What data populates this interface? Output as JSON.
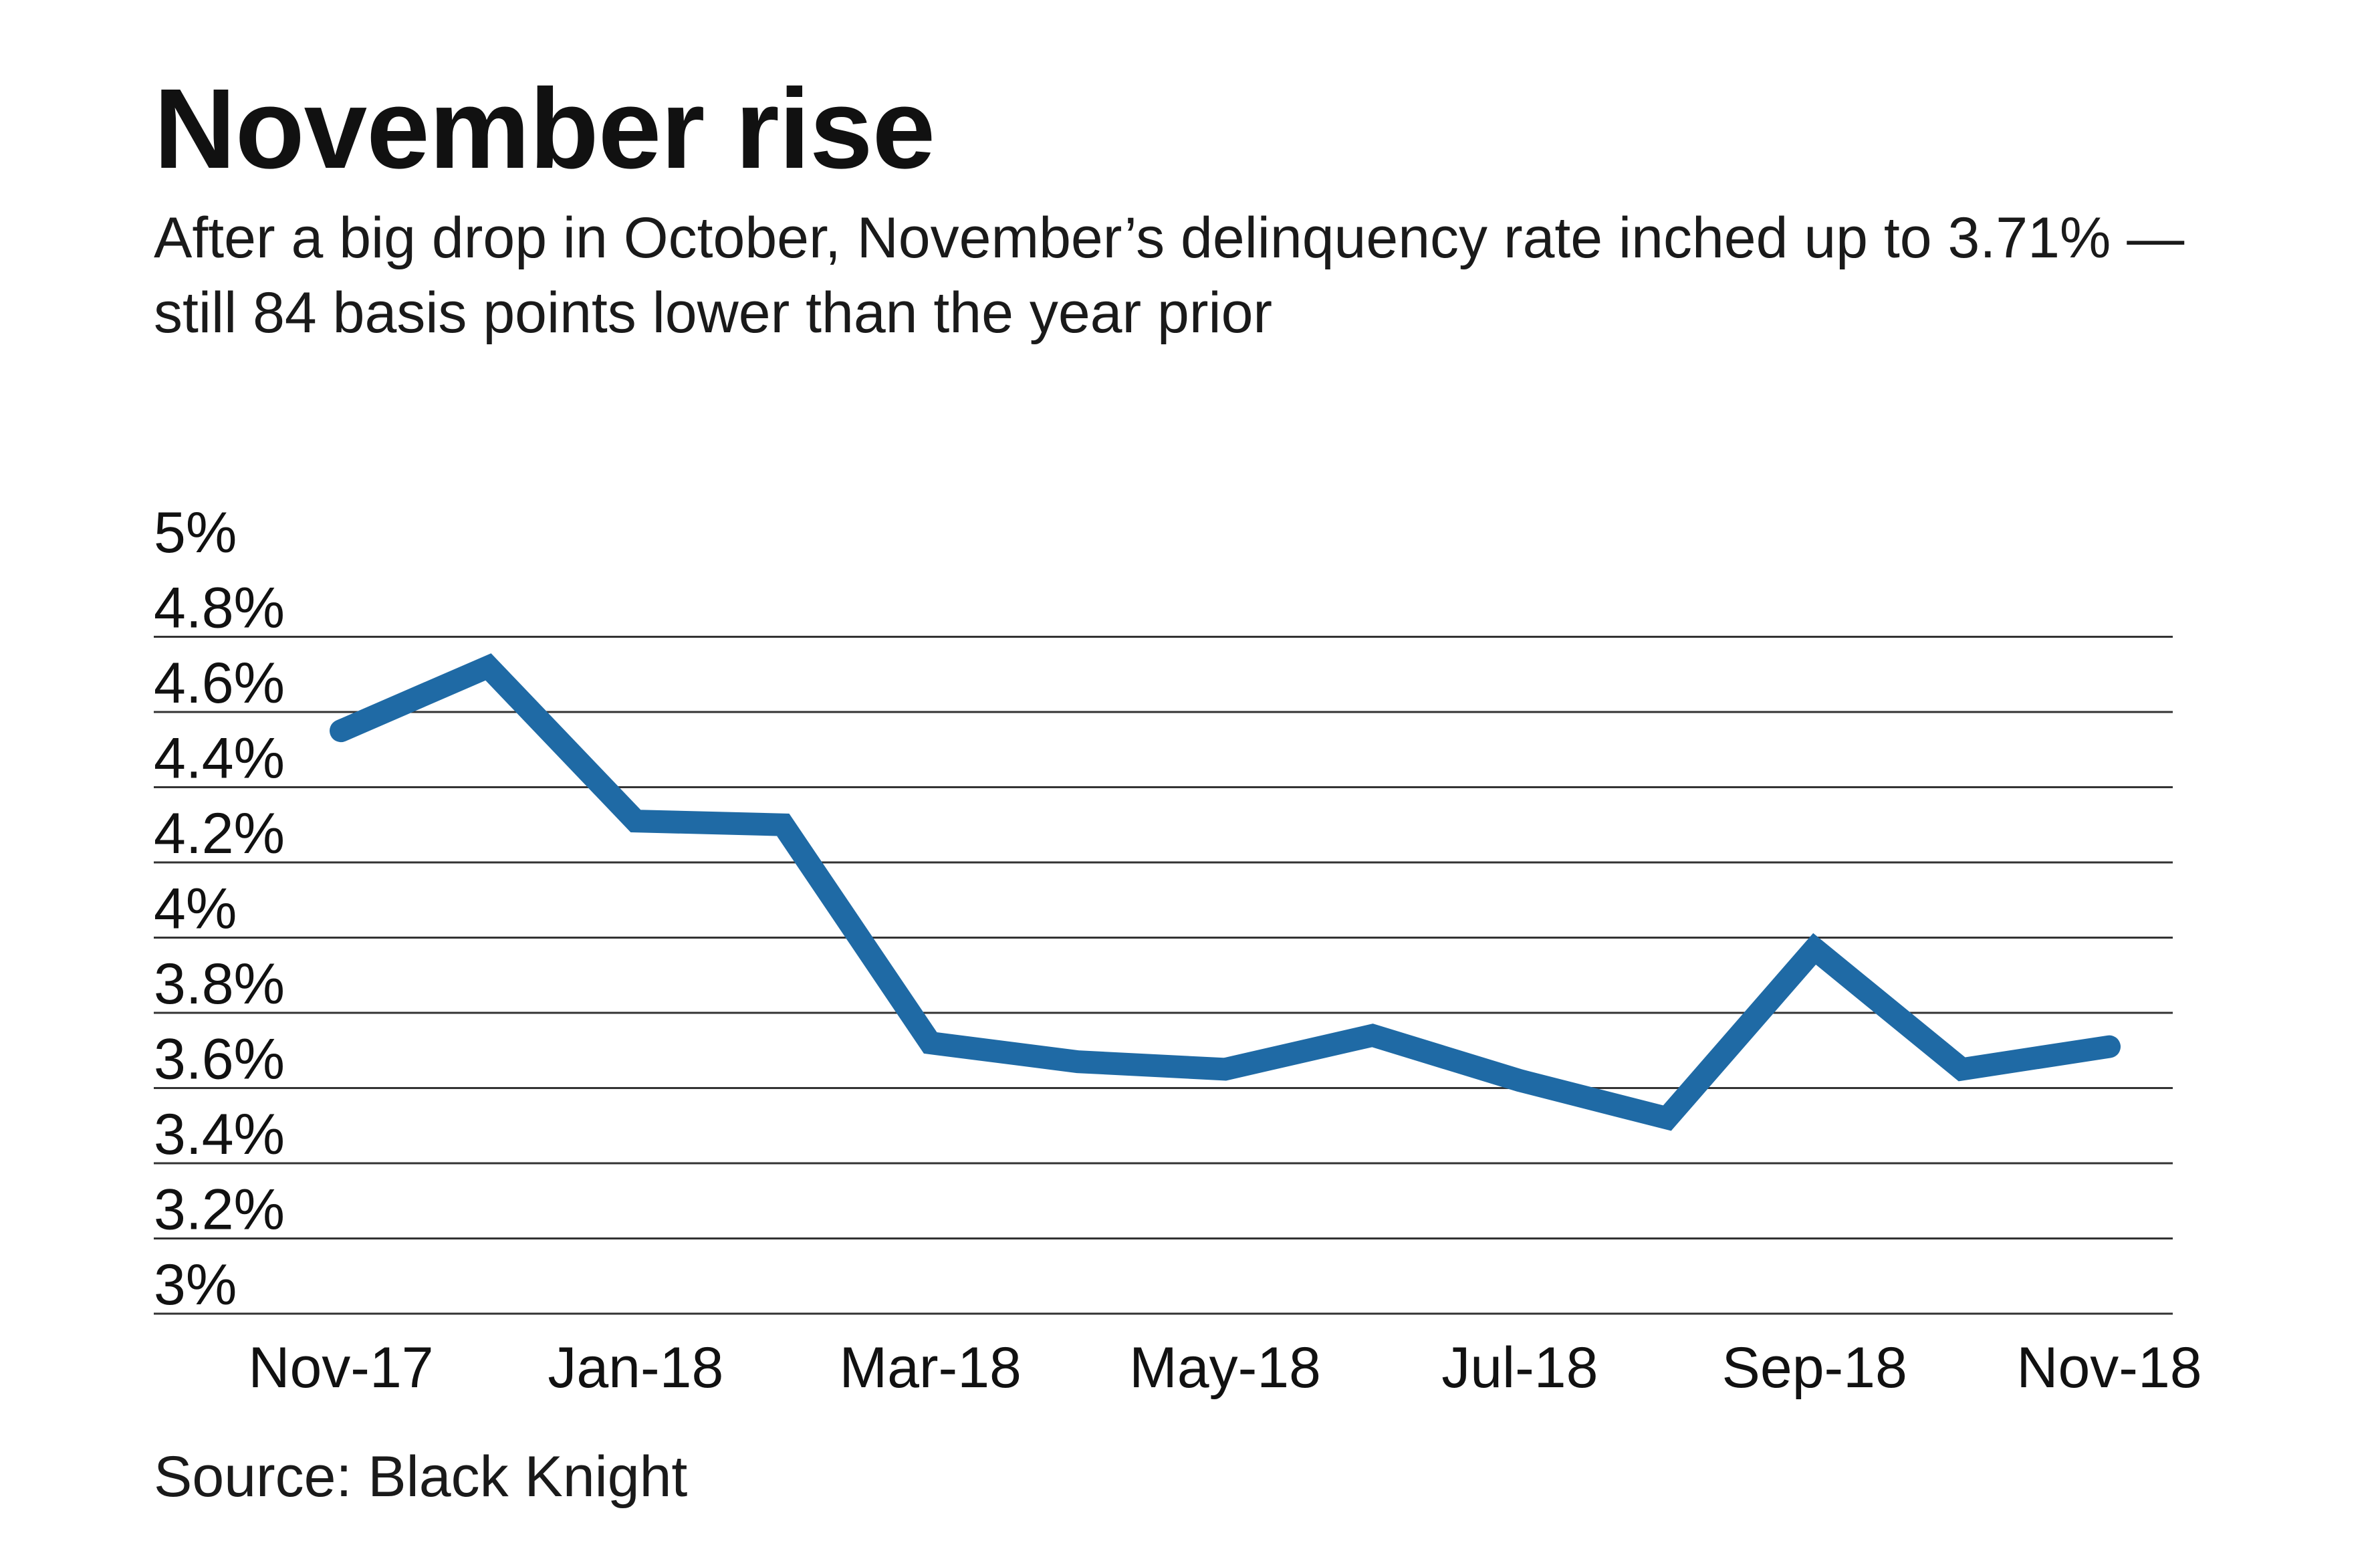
{
  "title": "November rise",
  "subtitle": "After a big drop in October, November’s delinquency rate inched up to 3.71% — still 84 basis points lower than the year prior",
  "source": "Source: Black Knight",
  "colors": {
    "line": "#1f6aa5",
    "grid": "#333333",
    "text": "#111111"
  },
  "chart_data": {
    "type": "line",
    "title": "November rise",
    "xlabel": "",
    "ylabel": "",
    "ylim": [
      3,
      5
    ],
    "y_ticks": [
      "5%",
      "4.8%",
      "4.6%",
      "4.4%",
      "4.2%",
      "4%",
      "3.8%",
      "3.6%",
      "3.4%",
      "3.2%",
      "3%"
    ],
    "x_tick_labels": [
      "Nov-17",
      "Jan-18",
      "Mar-18",
      "May-18",
      "Jul-18",
      "Sep-18",
      "Nov-18"
    ],
    "grid": true,
    "legend": "none",
    "series": [
      {
        "x": [
          "Nov-17",
          "Dec-17",
          "Jan-18",
          "Feb-18",
          "Mar-18",
          "Apr-18",
          "May-18",
          "Jun-18",
          "Jul-18",
          "Aug-18",
          "Sep-18",
          "Oct-18",
          "Nov-18"
        ],
        "values": [
          4.55,
          4.72,
          4.31,
          4.3,
          3.72,
          3.67,
          3.65,
          3.74,
          3.62,
          3.52,
          3.97,
          3.65,
          3.71
        ]
      }
    ]
  }
}
